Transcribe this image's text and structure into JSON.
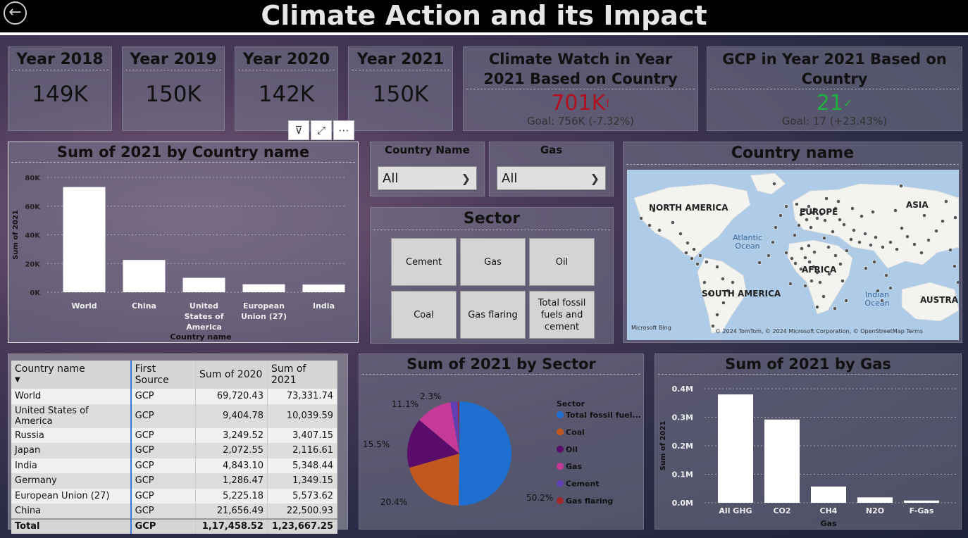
{
  "header": {
    "title": "Climate Action and its Impact",
    "back_icon": "←"
  },
  "kpis": [
    {
      "title": "Year 2018",
      "value": "149K"
    },
    {
      "title": "Year 2019",
      "value": "150K"
    },
    {
      "title": "Year 2020",
      "value": "142K"
    },
    {
      "title": "Year 2021",
      "value": "150K"
    }
  ],
  "goal_kpis": [
    {
      "title": "Climate Watch in Year 2021 Based on Country",
      "value": "701K",
      "mark": "!",
      "goal": "Goal: 756K (-7.32%)",
      "color": "#b01020"
    },
    {
      "title": "GCP in Year 2021 Based on Country",
      "value": "21",
      "mark": "✓",
      "goal": "Goal: 17 (+23.43%)",
      "color": "#1fb040"
    }
  ],
  "toolbar": {
    "filter_icon": "⊽",
    "focus_icon": "⤢",
    "more_icon": "⋯"
  },
  "country_chart": {
    "title": "Sum of 2021 by Country name",
    "y_ticks": [
      "80K",
      "60K",
      "40K",
      "20K",
      "0K"
    ],
    "chart_data": {
      "type": "bar",
      "title": "Sum of 2021 by Country name",
      "xlabel": "Country name",
      "ylabel": "Sum of 2021",
      "categories": [
        "World",
        "China",
        "United States of America",
        "European Union (27)",
        "India"
      ],
      "values": [
        73331.74,
        22500.93,
        10039.59,
        5573.62,
        5348.44
      ],
      "ylim": [
        0,
        80000
      ]
    }
  },
  "slicers": {
    "country": {
      "label": "Country Name",
      "value": "All"
    },
    "gas": {
      "label": "Gas",
      "value": "All"
    }
  },
  "sector_slicer": {
    "title": "Sector",
    "tiles": [
      "Cement",
      "Gas",
      "Oil",
      "Coal",
      "Gas flaring",
      "Total fossil fuels and cement"
    ]
  },
  "map": {
    "title": "Country name",
    "labels": [
      "NORTH AMERICA",
      "EUROPE",
      "ASIA",
      "AFRICA",
      "SOUTH AMERICA",
      "AUSTRAL"
    ],
    "oceans": [
      "Atlantic Ocean",
      "Indian Ocean"
    ],
    "attribution": "© 2024 TomTom, © 2024 Microsoft Corporation, © OpenStreetMap  Terms",
    "brand": "Microsoft Bing"
  },
  "table": {
    "headers": [
      "Country name",
      "First Source",
      "Sum of 2020",
      "Sum of 2021"
    ],
    "rows": [
      [
        "World",
        "GCP",
        "69,720.43",
        "73,331.74"
      ],
      [
        "United States of America",
        "GCP",
        "9,404.78",
        "10,039.59"
      ],
      [
        "Russia",
        "GCP",
        "3,249.52",
        "3,407.15"
      ],
      [
        "Japan",
        "GCP",
        "2,072.55",
        "2,116.61"
      ],
      [
        "India",
        "GCP",
        "4,843.10",
        "5,348.44"
      ],
      [
        "Germany",
        "GCP",
        "1,286.47",
        "1,349.15"
      ],
      [
        "European Union (27)",
        "GCP",
        "5,225.18",
        "5,573.62"
      ],
      [
        "China",
        "GCP",
        "21,656.49",
        "22,500.93"
      ]
    ],
    "total": [
      "Total",
      "GCP",
      "1,17,458.52",
      "1,23,667.25"
    ]
  },
  "sector_chart": {
    "title": "Sum of 2021 by Sector",
    "legend_title": "Sector",
    "legend": [
      {
        "name": "Total fossil fuel...",
        "color": "#1f6fd0"
      },
      {
        "name": "Coal",
        "color": "#c0581f"
      },
      {
        "name": "Oil",
        "color": "#5a0c6a"
      },
      {
        "name": "Gas",
        "color": "#c43a96"
      },
      {
        "name": "Cement",
        "color": "#6040b0"
      },
      {
        "name": "Gas flaring",
        "color": "#a0282c"
      }
    ],
    "chart_data": {
      "type": "pie",
      "title": "Sum of 2021 by Sector",
      "categories": [
        "Total fossil fuel...",
        "Coal",
        "Oil",
        "Gas",
        "Cement",
        "Gas flaring"
      ],
      "values": [
        50.2,
        20.4,
        15.5,
        11.1,
        2.3,
        0.5
      ],
      "labels": [
        "50.2%",
        "20.4%",
        "15.5%",
        "11.1%",
        "2.3%",
        ""
      ]
    }
  },
  "gas_chart": {
    "title": "Sum of 2021 by Gas",
    "y_ticks": [
      "0.4M",
      "0.3M",
      "0.2M",
      "0.1M",
      "0.0M"
    ],
    "chart_data": {
      "type": "bar",
      "title": "Sum of 2021 by Gas",
      "xlabel": "Gas",
      "ylabel": "Sum of 2021",
      "categories": [
        "All GHG",
        "CO2",
        "CH4",
        "N2O",
        "F-Gas"
      ],
      "values": [
        380000,
        292000,
        57000,
        19000,
        8000
      ],
      "ylim": [
        0,
        400000
      ]
    }
  }
}
